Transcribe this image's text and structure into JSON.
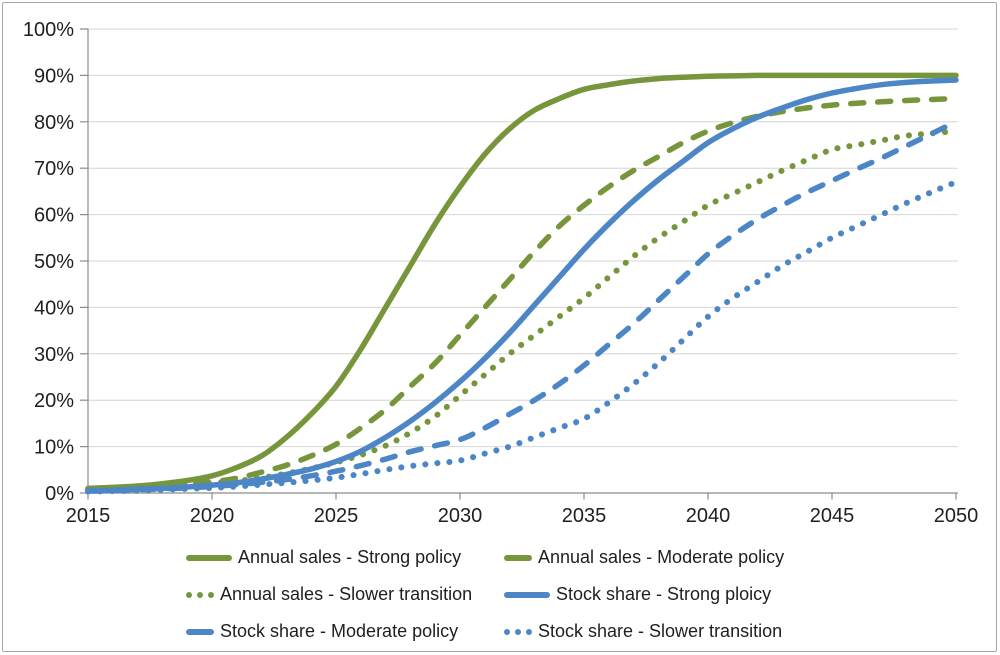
{
  "chart_data": {
    "type": "line",
    "title": "",
    "xlabel": "",
    "ylabel": "",
    "xlim": [
      2015,
      2050
    ],
    "ylim": [
      0,
      100
    ],
    "grid": "horizontal",
    "legend_position": "bottom",
    "x_tick_labels": [
      "2015",
      "2020",
      "2025",
      "2030",
      "2035",
      "2040",
      "2045",
      "2050"
    ],
    "x_ticks": [
      2015,
      2020,
      2025,
      2030,
      2035,
      2040,
      2045,
      2050
    ],
    "y_tick_labels": [
      "0%",
      "10%",
      "20%",
      "30%",
      "40%",
      "50%",
      "60%",
      "70%",
      "80%",
      "90%",
      "100%"
    ],
    "y_ticks": [
      0,
      10,
      20,
      30,
      40,
      50,
      60,
      70,
      80,
      90,
      100
    ],
    "x_years": [
      2015,
      2016,
      2017,
      2018,
      2019,
      2020,
      2021,
      2022,
      2023,
      2024,
      2025,
      2026,
      2027,
      2028,
      2029,
      2030,
      2031,
      2032,
      2033,
      2034,
      2035,
      2036,
      2037,
      2038,
      2039,
      2040,
      2041,
      2042,
      2043,
      2044,
      2045,
      2046,
      2047,
      2048,
      2049,
      2050
    ],
    "colors": {
      "green": "#77963C",
      "blue": "#4C86C6",
      "grid": "#D6D6D6",
      "axis": "#8C8C8C",
      "text": "#1F1F1F",
      "border": "#A6A6A6"
    },
    "series": [
      {
        "name": "Annual sales - Strong policy",
        "color": "#77963C",
        "style": "solid",
        "values": [
          1,
          1.2,
          1.5,
          2,
          2.7,
          3.7,
          5.5,
          8,
          12,
          17,
          23,
          31,
          40,
          49,
          58,
          66,
          73,
          78.5,
          82.5,
          85,
          87,
          88,
          88.8,
          89.3,
          89.6,
          89.8,
          89.9,
          90,
          90,
          90,
          90,
          90,
          90,
          90,
          90,
          90
        ]
      },
      {
        "name": "Annual sales - Moderate policy",
        "color": "#77963C",
        "style": "dashed",
        "values": [
          0.8,
          1,
          1.2,
          1.5,
          1.9,
          2.4,
          3.2,
          4.5,
          6,
          8,
          10.5,
          14,
          18,
          23,
          28,
          34,
          40,
          46,
          52,
          57.5,
          62,
          66,
          69.5,
          72.5,
          75.5,
          78,
          79.8,
          81.2,
          82.2,
          83,
          83.6,
          84,
          84.3,
          84.6,
          84.8,
          85
        ]
      },
      {
        "name": "Annual sales - Slower transition",
        "color": "#77963C",
        "style": "dotted",
        "values": [
          0.7,
          0.9,
          1.1,
          1.4,
          1.7,
          2.1,
          2.6,
          3.3,
          4.2,
          5.3,
          6.6,
          8.2,
          10.2,
          13,
          16.5,
          21,
          25.5,
          30,
          34,
          38,
          42,
          46.5,
          51,
          55,
          58.5,
          62,
          64.5,
          67,
          69.5,
          71.8,
          74,
          75,
          76,
          77,
          77.5,
          78
        ]
      },
      {
        "name": "Stock share - Strong ploicy",
        "color": "#4C86C6",
        "style": "solid",
        "values": [
          0.5,
          0.6,
          0.8,
          1,
          1.3,
          1.7,
          2.2,
          3,
          4,
          5.2,
          6.8,
          9,
          12,
          15.5,
          19.5,
          24,
          29,
          34.5,
          40.5,
          46.5,
          52.5,
          58,
          63,
          67.5,
          71.5,
          75.5,
          78.5,
          81,
          83,
          84.8,
          86.2,
          87.2,
          88,
          88.5,
          88.8,
          89
        ]
      },
      {
        "name": "Stock share - Moderate policy",
        "color": "#4C86C6",
        "style": "dashed",
        "values": [
          0.4,
          0.5,
          0.7,
          0.9,
          1.1,
          1.4,
          1.8,
          2.3,
          2.9,
          3.7,
          4.7,
          5.9,
          7.3,
          8.9,
          10.2,
          11.5,
          14,
          17,
          20,
          23.5,
          27.5,
          32,
          36.5,
          41.5,
          46.5,
          51.5,
          55.5,
          59,
          62,
          64.8,
          67.3,
          69.8,
          72.2,
          74.8,
          77.4,
          80
        ]
      },
      {
        "name": "Stock share - Slower transition",
        "color": "#4C86C6",
        "style": "dotted",
        "values": [
          0.3,
          0.4,
          0.5,
          0.7,
          0.9,
          1.1,
          1.4,
          1.8,
          2.2,
          2.7,
          3.3,
          4.1,
          5,
          5.8,
          6.4,
          7,
          8.5,
          10,
          12,
          14,
          16,
          19.5,
          23.5,
          28,
          33,
          38,
          42,
          45.5,
          49,
          52,
          55,
          57.5,
          60,
          62.5,
          64.8,
          67
        ]
      }
    ]
  }
}
